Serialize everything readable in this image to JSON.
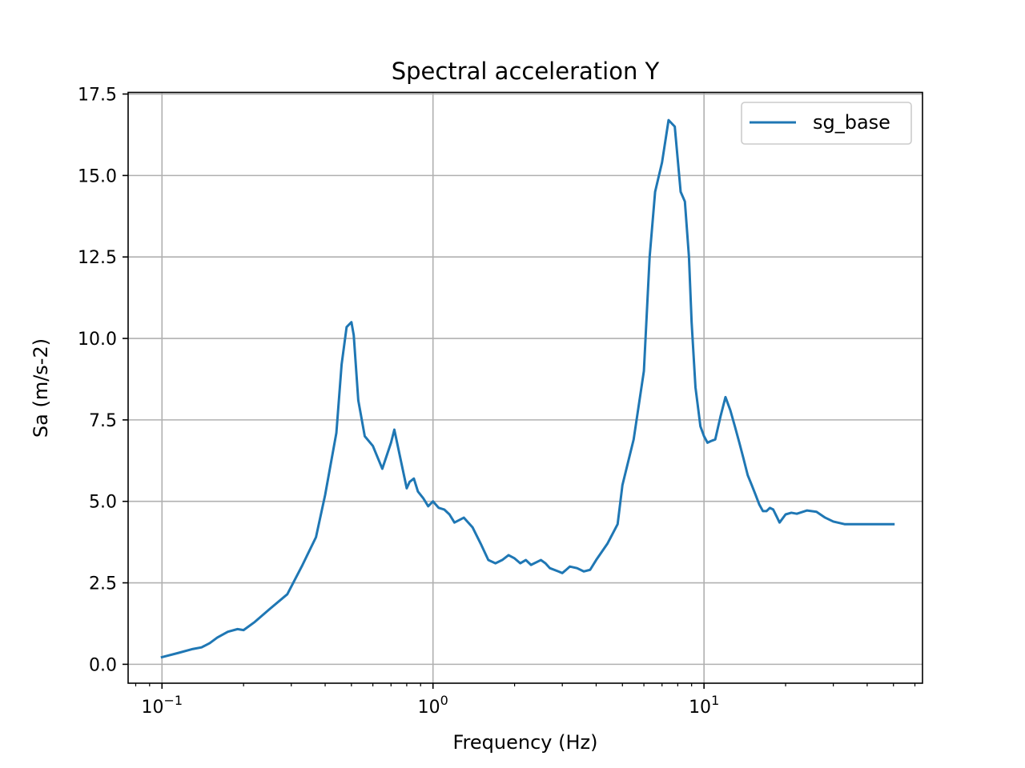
{
  "chart_data": {
    "type": "line",
    "title": "Spectral acceleration Y",
    "xlabel": "Frequency (Hz)",
    "ylabel": "Sa (m/s-2)",
    "xscale": "log",
    "xlim": [
      0.075,
      64
    ],
    "ylim": [
      -0.58,
      17.55
    ],
    "grid": true,
    "legend_position": "top-right",
    "line_color": "#1f77b4",
    "x_ticks": [
      {
        "value": 0.1,
        "base": "10",
        "exp": "−1"
      },
      {
        "value": 1,
        "base": "10",
        "exp": "0"
      },
      {
        "value": 10,
        "base": "10",
        "exp": "1"
      }
    ],
    "y_ticks": [
      {
        "value": 0.0,
        "label": "0.0"
      },
      {
        "value": 2.5,
        "label": "2.5"
      },
      {
        "value": 5.0,
        "label": "5.0"
      },
      {
        "value": 7.5,
        "label": "7.5"
      },
      {
        "value": 10.0,
        "label": "10.0"
      },
      {
        "value": 12.5,
        "label": "12.5"
      },
      {
        "value": 15.0,
        "label": "15.0"
      },
      {
        "value": 17.5,
        "label": "17.5"
      }
    ],
    "series": [
      {
        "name": "sg_base",
        "x": [
          0.1,
          0.115,
          0.13,
          0.14,
          0.15,
          0.16,
          0.175,
          0.19,
          0.2,
          0.22,
          0.25,
          0.29,
          0.33,
          0.37,
          0.4,
          0.44,
          0.46,
          0.48,
          0.5,
          0.51,
          0.53,
          0.56,
          0.6,
          0.65,
          0.7,
          0.72,
          0.75,
          0.8,
          0.82,
          0.85,
          0.88,
          0.92,
          0.96,
          1.0,
          1.05,
          1.1,
          1.15,
          1.2,
          1.3,
          1.4,
          1.5,
          1.6,
          1.7,
          1.8,
          1.9,
          2.0,
          2.1,
          2.2,
          2.3,
          2.5,
          2.6,
          2.7,
          2.9,
          3.0,
          3.1,
          3.2,
          3.4,
          3.6,
          3.8,
          4.0,
          4.4,
          4.8,
          5.0,
          5.5,
          6.0,
          6.3,
          6.6,
          7.0,
          7.4,
          7.8,
          8.2,
          8.5,
          8.8,
          9.0,
          9.3,
          9.7,
          10.0,
          10.3,
          10.6,
          11.0,
          11.5,
          12.0,
          12.5,
          13.0,
          13.5,
          14.0,
          14.5,
          15.0,
          15.5,
          16.0,
          16.5,
          17.0,
          17.5,
          18.0,
          18.5,
          19.0,
          20.0,
          21.0,
          22.0,
          24.0,
          26.0,
          28.0,
          30.0,
          33.0,
          36.0,
          40.0,
          43.0,
          46.0,
          50.0
        ],
        "y": [
          0.22,
          0.35,
          0.47,
          0.52,
          0.65,
          0.82,
          1.0,
          1.08,
          1.05,
          1.3,
          1.7,
          2.15,
          3.05,
          3.9,
          5.2,
          7.1,
          9.2,
          10.35,
          10.5,
          10.1,
          8.1,
          7.0,
          6.7,
          6.0,
          6.8,
          7.2,
          6.5,
          5.4,
          5.6,
          5.7,
          5.3,
          5.1,
          4.85,
          5.0,
          4.8,
          4.75,
          4.6,
          4.35,
          4.5,
          4.2,
          3.7,
          3.2,
          3.1,
          3.2,
          3.35,
          3.25,
          3.1,
          3.2,
          3.05,
          3.2,
          3.1,
          2.95,
          2.85,
          2.8,
          2.9,
          3.0,
          2.95,
          2.85,
          2.9,
          3.2,
          3.7,
          4.3,
          5.5,
          6.9,
          9.0,
          12.5,
          14.5,
          15.4,
          16.7,
          16.5,
          14.5,
          14.2,
          12.5,
          10.5,
          8.5,
          7.3,
          7.0,
          6.8,
          6.85,
          6.9,
          7.6,
          8.2,
          7.8,
          7.3,
          6.8,
          6.3,
          5.8,
          5.5,
          5.2,
          4.9,
          4.7,
          4.7,
          4.8,
          4.75,
          4.55,
          4.35,
          4.6,
          4.65,
          4.62,
          4.72,
          4.68,
          4.5,
          4.38,
          4.3,
          4.3,
          4.3,
          4.3,
          4.3,
          4.3
        ]
      }
    ]
  }
}
